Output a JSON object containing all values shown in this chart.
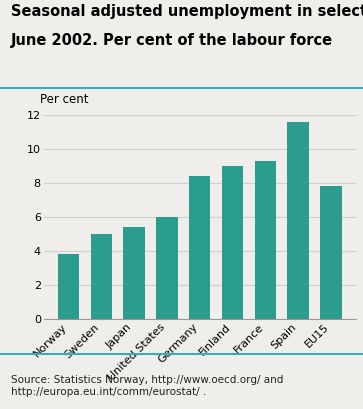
{
  "title_line1": "Seasonal adjusted unemployment in selected countries.",
  "title_line2": "June 2002. Per cent of the labour force",
  "ylabel": "Per cent",
  "source": "Source: Statistics Norway, http://www.oecd.org/ and\nhttp://europa.eu.int/comm/eurostat/ .",
  "categories": [
    "Norway",
    "Sweden",
    "Japan",
    "United States",
    "Germany",
    "Finland",
    "France",
    "Spain",
    "EU15"
  ],
  "values": [
    3.8,
    5.0,
    5.4,
    6.0,
    8.4,
    9.0,
    9.3,
    11.55,
    7.8
  ],
  "bar_color": "#2a9d8f",
  "ylim": [
    0,
    12
  ],
  "yticks": [
    0,
    2,
    4,
    6,
    8,
    10,
    12
  ],
  "title_fontsize": 10.5,
  "ylabel_fontsize": 8.5,
  "source_fontsize": 7.5,
  "tick_fontsize": 8,
  "bar_width": 0.65,
  "bg_color": "#f0eeea",
  "grid_color": "#d0cfc9",
  "teal_line_color": "#3aacb8",
  "source_color": "#222222"
}
